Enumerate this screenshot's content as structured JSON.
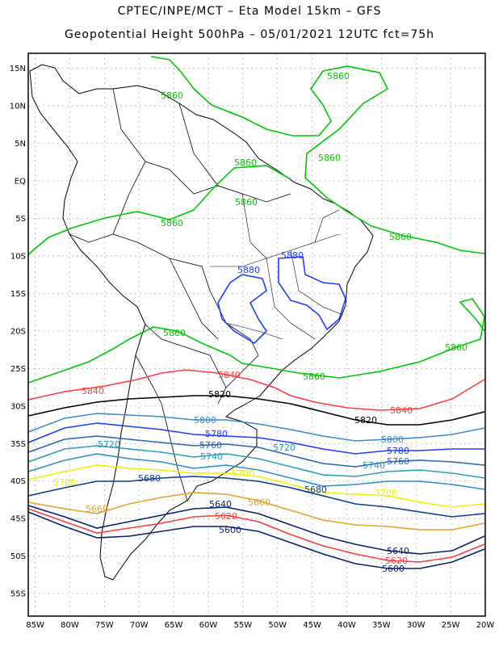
{
  "title_line1": "CPTEC/INPE/MCT –  Eta Model 15km – GFS",
  "title_line2": "Geopotential Height 500hPa – 05/01/2021 12UTC fct=75h",
  "axes": {
    "lat_ticks": [
      "15N",
      "10N",
      "5N",
      "EQ",
      "5S",
      "10S",
      "15S",
      "20S",
      "25S",
      "30S",
      "35S",
      "40S",
      "45S",
      "50S",
      "55S"
    ],
    "lon_ticks": [
      "85W",
      "80W",
      "75W",
      "70W",
      "65W",
      "60W",
      "55W",
      "50W",
      "45W",
      "40W",
      "35W",
      "30W",
      "25W",
      "20W"
    ],
    "lat_range": [
      "17N",
      "58S"
    ],
    "lon_range": [
      "86W",
      "20W"
    ],
    "grid": true
  },
  "contour_colors": {
    "5580": "#0a1e6e",
    "5600": "#0a1e6e",
    "5620": "#ff3c3c",
    "5640": "#0a1e6e",
    "5660": "#e6a028",
    "5680": "#0a3c96",
    "5700": "#f0f000",
    "5720": "#2890c8",
    "5740": "#28a0b4",
    "5760": "#2864b4",
    "5780": "#1e3cff",
    "5800": "#3c8cc8",
    "5820": "#000000",
    "5840": "#ff3c3c",
    "5860": "#00c800",
    "5880": "#1e3cff"
  },
  "contour_labels": [
    {
      "text": "5860",
      "color": "#00c800"
    },
    {
      "text": "5860",
      "color": "#00c800"
    },
    {
      "text": "5860",
      "color": "#00c800"
    },
    {
      "text": "5860",
      "color": "#00c800"
    },
    {
      "text": "5860",
      "color": "#00c800"
    },
    {
      "text": "5860",
      "color": "#00c800"
    },
    {
      "text": "5860",
      "color": "#00c800"
    },
    {
      "text": "5860",
      "color": "#00c800"
    },
    {
      "text": "5860",
      "color": "#00c800"
    },
    {
      "text": "5860",
      "color": "#00c800"
    },
    {
      "text": "5880",
      "color": "#1e3cff"
    },
    {
      "text": "5880",
      "color": "#1e3cff"
    },
    {
      "text": "5840",
      "color": "#ff3c3c"
    },
    {
      "text": "5840",
      "color": "#ff3c3c"
    },
    {
      "text": "5840",
      "color": "#ff3c3c"
    },
    {
      "text": "5820",
      "color": "#000000"
    },
    {
      "text": "5820",
      "color": "#000000"
    },
    {
      "text": "5800",
      "color": "#3c8cc8"
    },
    {
      "text": "5800",
      "color": "#3c8cc8"
    },
    {
      "text": "5780",
      "color": "#1e3cff"
    },
    {
      "text": "5780",
      "color": "#1e3cff"
    },
    {
      "text": "5760",
      "color": "#2864b4"
    },
    {
      "text": "5760",
      "color": "#2864b4"
    },
    {
      "text": "5740",
      "color": "#28a0b4"
    },
    {
      "text": "5740",
      "color": "#28a0b4"
    },
    {
      "text": "5720",
      "color": "#2890c8"
    },
    {
      "text": "5720",
      "color": "#2890c8"
    },
    {
      "text": "5700",
      "color": "#f0f000"
    },
    {
      "text": "5700",
      "color": "#f0f000"
    },
    {
      "text": "5700",
      "color": "#f0f000"
    },
    {
      "text": "5680",
      "color": "#0a3c96"
    },
    {
      "text": "5680",
      "color": "#0a3c96"
    },
    {
      "text": "5660",
      "color": "#e6a028"
    },
    {
      "text": "5660",
      "color": "#e6a028"
    },
    {
      "text": "5640",
      "color": "#0a1e6e"
    },
    {
      "text": "5640",
      "color": "#0a1e6e"
    },
    {
      "text": "5620",
      "color": "#ff3c3c"
    },
    {
      "text": "5620",
      "color": "#ff3c3c"
    },
    {
      "text": "5600",
      "color": "#0a1e6e"
    },
    {
      "text": "5600",
      "color": "#0a1e6e"
    }
  ]
}
